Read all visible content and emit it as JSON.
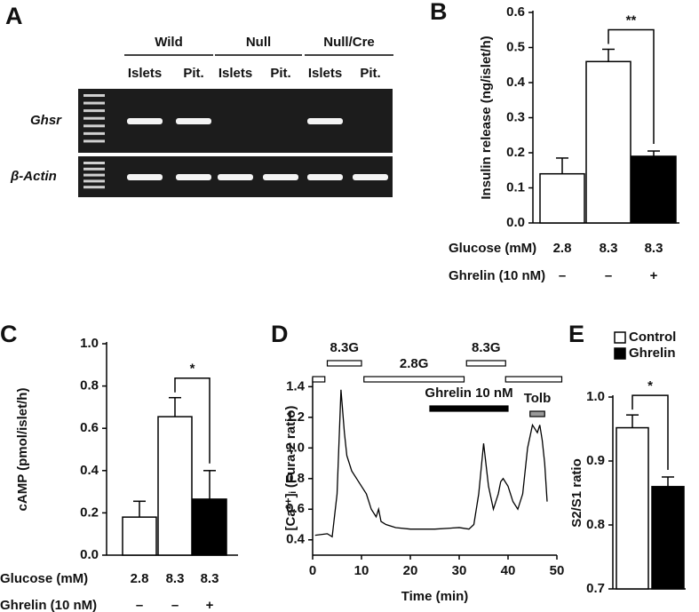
{
  "gel": {
    "panel": "A",
    "groups": [
      "Wild",
      "Null",
      "Null/Cre"
    ],
    "lanes": [
      "Islets",
      "Pit.",
      "Islets",
      "Pit.",
      "Islets",
      "Pit."
    ],
    "rows": [
      "Ghsr",
      "β-Actin"
    ]
  },
  "chart_data": [
    {
      "type": "bar",
      "panel": "B",
      "y_label": "Insulin release (ng/islet/h)",
      "categories": [
        "2.8",
        "8.3",
        "8.3"
      ],
      "category_label": "Glucose (mM)",
      "treatment_label": "Ghrelin (10 nM)",
      "treatment": [
        "–",
        "–",
        "+"
      ],
      "values": [
        0.14,
        0.46,
        0.19
      ],
      "errors": [
        0.045,
        0.035,
        0.015
      ],
      "colors": [
        "#ffffff",
        "#ffffff",
        "#000000"
      ],
      "ylim": [
        0,
        0.6
      ],
      "yticks": [
        {
          "value": 0,
          "label": "0.0"
        },
        0.1,
        0.2,
        0.3,
        0.4,
        0.5,
        0.6
      ],
      "significance": {
        "label": "**",
        "between": [
          1,
          2
        ]
      }
    },
    {
      "type": "bar",
      "panel": "C",
      "y_label": "cAMP (pmol/islet/h)",
      "categories": [
        "2.8",
        "8.3",
        "8.3"
      ],
      "category_label": "Glucose (mM)",
      "treatment_label": "Ghrelin (10 nM)",
      "treatment": [
        "–",
        "–",
        "+"
      ],
      "values": [
        0.18,
        0.655,
        0.265
      ],
      "errors": [
        0.075,
        0.09,
        0.135
      ],
      "colors": [
        "#ffffff",
        "#ffffff",
        "#000000"
      ],
      "ylim": [
        0,
        1
      ],
      "yticks": [
        {
          "value": 0,
          "label": "0.0"
        },
        0.2,
        0.4,
        0.6,
        0.8,
        {
          "value": 1,
          "label": "1.0"
        }
      ],
      "significance": {
        "label": "*",
        "between": [
          1,
          2
        ]
      }
    },
    {
      "type": "line",
      "panel": "D",
      "x_label": "Time (min)",
      "y_label": "[Ca²⁺]ᵢ (Fura-2 ratio)",
      "x": [
        0.5,
        3,
        4,
        5,
        5.8,
        6.5,
        7,
        8,
        9,
        10,
        11,
        12,
        13,
        13.5,
        14,
        15,
        17,
        20,
        25,
        30,
        32,
        33,
        34,
        35,
        36,
        37,
        38,
        38.5,
        39,
        40,
        41,
        42,
        43,
        44,
        45,
        46,
        46.5,
        47,
        47.5,
        48
      ],
      "values": [
        0.43,
        0.44,
        0.42,
        0.7,
        1.38,
        1.1,
        0.95,
        0.85,
        0.8,
        0.75,
        0.7,
        0.6,
        0.55,
        0.6,
        0.52,
        0.5,
        0.48,
        0.47,
        0.47,
        0.48,
        0.47,
        0.5,
        0.7,
        1.03,
        0.75,
        0.6,
        0.7,
        0.78,
        0.8,
        0.75,
        0.65,
        0.6,
        0.7,
        1.0,
        1.15,
        1.1,
        1.15,
        1.05,
        0.9,
        0.65
      ],
      "color": "#000000",
      "xlim": [
        0,
        50
      ],
      "xticks": [
        0,
        10,
        20,
        30,
        40,
        50
      ],
      "ylim": [
        0.3,
        1.46
      ],
      "yticks": [
        0.4,
        0.6,
        0.8,
        {
          "value": 1,
          "label": "1.0"
        },
        1.2,
        1.4
      ],
      "intervals": [
        {
          "start": 0,
          "end": 2.5,
          "color": "#ffffff"
        },
        {
          "label": "8.3G",
          "start": 3,
          "end": 10,
          "color": "#ffffff"
        },
        {
          "label": "2.8G",
          "start": 10.5,
          "end": 31,
          "color": "#ffffff"
        },
        {
          "label": "8.3G",
          "start": 31.5,
          "end": 39.5,
          "color": "#ffffff"
        },
        {
          "start": 39.5,
          "end": 51,
          "color": "#ffffff"
        },
        {
          "label": "Ghrelin 10 nM",
          "start": 24,
          "end": 40,
          "color": "#000000"
        },
        {
          "label": "Tolb",
          "start": 44.5,
          "end": 47.5,
          "color": "#999999"
        }
      ]
    },
    {
      "type": "bar",
      "panel": "E",
      "y_label": "S2/S1 ratio",
      "categories": [
        null
      ],
      "series": [
        {
          "name": "Control",
          "color": "#ffffff",
          "values": [
            0.952
          ],
          "errors": [
            0.02
          ]
        },
        {
          "name": "Ghrelin",
          "color": "#000000",
          "values": [
            0.86
          ],
          "errors": [
            0.015
          ]
        }
      ],
      "ylim": [
        0.7,
        1
      ],
      "yticks": [
        0.7,
        0.8,
        0.9,
        {
          "value": 1,
          "label": "1.0"
        }
      ],
      "significance": {
        "label": "*",
        "between": [
          0,
          1
        ]
      }
    }
  ]
}
